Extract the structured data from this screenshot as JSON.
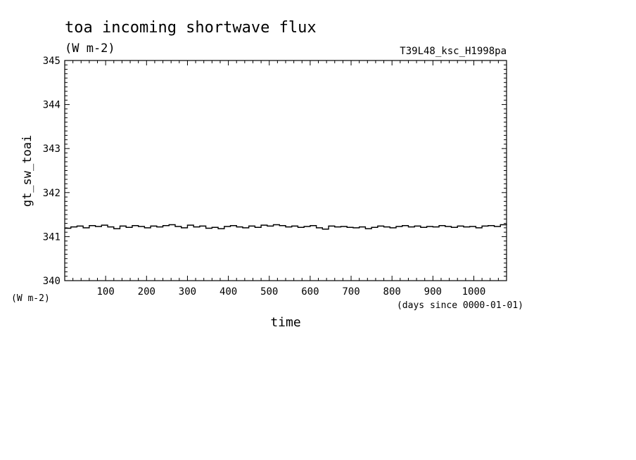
{
  "chart_data": {
    "type": "line",
    "title": "toa incoming shortwave flux",
    "subtitle": "(W m-2)",
    "run_label": "T39L48_ksc_H1998pa",
    "xlabel": "time",
    "x_unit": "(days since 0000-01-01)",
    "ylabel": "gt_sw_toai",
    "y_unit": "(W m-2)",
    "xlim": [
      0,
      1080
    ],
    "ylim": [
      340,
      345
    ],
    "x_ticks": [
      100,
      200,
      300,
      400,
      500,
      600,
      700,
      800,
      900,
      1000
    ],
    "x_tick_labels": [
      "100",
      "200",
      "300",
      "400",
      "500",
      "600",
      "700",
      "800",
      "900",
      "1000"
    ],
    "y_ticks": [
      340,
      341,
      342,
      343,
      344,
      345
    ],
    "y_tick_labels": [
      "340",
      "341",
      "342",
      "343",
      "344",
      "345"
    ],
    "grid": false,
    "series": [
      {
        "color": "#000000",
        "x": [
          0,
          15,
          30,
          45,
          60,
          75,
          90,
          105,
          120,
          135,
          150,
          165,
          180,
          195,
          210,
          225,
          240,
          255,
          270,
          285,
          300,
          315,
          330,
          345,
          360,
          375,
          390,
          405,
          420,
          435,
          450,
          465,
          480,
          495,
          510,
          525,
          540,
          555,
          570,
          585,
          600,
          615,
          630,
          645,
          660,
          675,
          690,
          705,
          720,
          735,
          750,
          765,
          780,
          795,
          810,
          825,
          840,
          855,
          870,
          885,
          900,
          915,
          930,
          945,
          960,
          975,
          990,
          1005,
          1020,
          1035,
          1050,
          1065,
          1080
        ],
        "y": [
          341.19,
          341.22,
          341.24,
          341.2,
          341.25,
          341.23,
          341.26,
          341.22,
          341.18,
          341.24,
          341.21,
          341.25,
          341.23,
          341.2,
          341.24,
          341.22,
          341.25,
          341.27,
          341.23,
          341.2,
          341.26,
          341.22,
          341.24,
          341.19,
          341.21,
          341.18,
          341.23,
          341.25,
          341.22,
          341.2,
          341.24,
          341.21,
          341.26,
          341.24,
          341.27,
          341.25,
          341.22,
          341.24,
          341.21,
          341.23,
          341.25,
          341.2,
          341.17,
          341.24,
          341.22,
          341.23,
          341.21,
          341.2,
          341.22,
          341.18,
          341.21,
          341.24,
          341.22,
          341.2,
          341.23,
          341.25,
          341.22,
          341.24,
          341.21,
          341.23,
          341.22,
          341.25,
          341.23,
          341.21,
          341.24,
          341.22,
          341.23,
          341.2,
          341.24,
          341.25,
          341.23,
          341.27,
          341.26
        ]
      }
    ]
  }
}
